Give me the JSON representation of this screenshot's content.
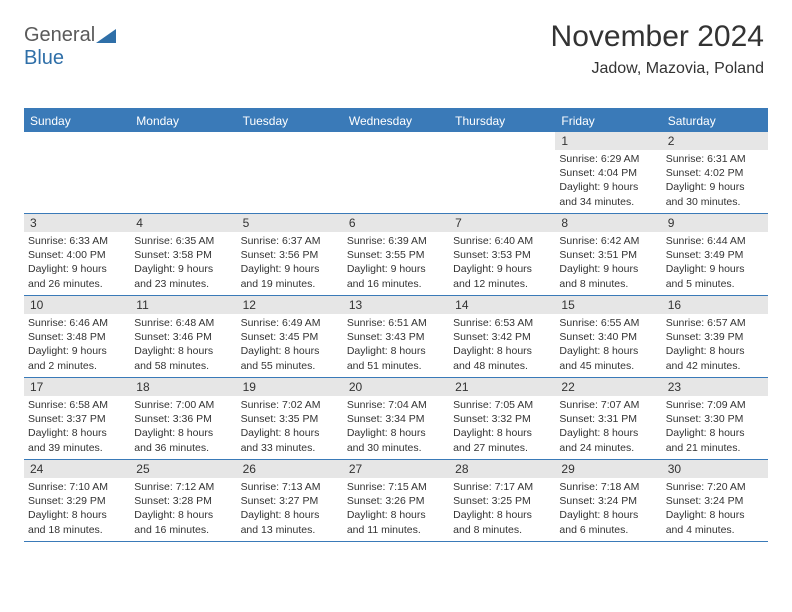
{
  "logo": {
    "gray": "General",
    "blue": "Blue"
  },
  "header": {
    "title": "November 2024",
    "subtitle": "Jadow, Mazovia, Poland"
  },
  "dayHeaders": [
    "Sunday",
    "Monday",
    "Tuesday",
    "Wednesday",
    "Thursday",
    "Friday",
    "Saturday"
  ],
  "colors": {
    "headerBg": "#3a7ab8",
    "headerText": "#ffffff",
    "dayBg": "#e6e6e6",
    "bodyText": "#333333",
    "logoGray": "#5a5a5a",
    "logoBlue": "#2f6fa8"
  },
  "days": [
    {
      "n": "",
      "sunrise": "",
      "sunset": "",
      "daylight": ""
    },
    {
      "n": "",
      "sunrise": "",
      "sunset": "",
      "daylight": ""
    },
    {
      "n": "",
      "sunrise": "",
      "sunset": "",
      "daylight": ""
    },
    {
      "n": "",
      "sunrise": "",
      "sunset": "",
      "daylight": ""
    },
    {
      "n": "",
      "sunrise": "",
      "sunset": "",
      "daylight": ""
    },
    {
      "n": "1",
      "sunrise": "Sunrise: 6:29 AM",
      "sunset": "Sunset: 4:04 PM",
      "daylight": "Daylight: 9 hours and 34 minutes."
    },
    {
      "n": "2",
      "sunrise": "Sunrise: 6:31 AM",
      "sunset": "Sunset: 4:02 PM",
      "daylight": "Daylight: 9 hours and 30 minutes."
    },
    {
      "n": "3",
      "sunrise": "Sunrise: 6:33 AM",
      "sunset": "Sunset: 4:00 PM",
      "daylight": "Daylight: 9 hours and 26 minutes."
    },
    {
      "n": "4",
      "sunrise": "Sunrise: 6:35 AM",
      "sunset": "Sunset: 3:58 PM",
      "daylight": "Daylight: 9 hours and 23 minutes."
    },
    {
      "n": "5",
      "sunrise": "Sunrise: 6:37 AM",
      "sunset": "Sunset: 3:56 PM",
      "daylight": "Daylight: 9 hours and 19 minutes."
    },
    {
      "n": "6",
      "sunrise": "Sunrise: 6:39 AM",
      "sunset": "Sunset: 3:55 PM",
      "daylight": "Daylight: 9 hours and 16 minutes."
    },
    {
      "n": "7",
      "sunrise": "Sunrise: 6:40 AM",
      "sunset": "Sunset: 3:53 PM",
      "daylight": "Daylight: 9 hours and 12 minutes."
    },
    {
      "n": "8",
      "sunrise": "Sunrise: 6:42 AM",
      "sunset": "Sunset: 3:51 PM",
      "daylight": "Daylight: 9 hours and 8 minutes."
    },
    {
      "n": "9",
      "sunrise": "Sunrise: 6:44 AM",
      "sunset": "Sunset: 3:49 PM",
      "daylight": "Daylight: 9 hours and 5 minutes."
    },
    {
      "n": "10",
      "sunrise": "Sunrise: 6:46 AM",
      "sunset": "Sunset: 3:48 PM",
      "daylight": "Daylight: 9 hours and 2 minutes."
    },
    {
      "n": "11",
      "sunrise": "Sunrise: 6:48 AM",
      "sunset": "Sunset: 3:46 PM",
      "daylight": "Daylight: 8 hours and 58 minutes."
    },
    {
      "n": "12",
      "sunrise": "Sunrise: 6:49 AM",
      "sunset": "Sunset: 3:45 PM",
      "daylight": "Daylight: 8 hours and 55 minutes."
    },
    {
      "n": "13",
      "sunrise": "Sunrise: 6:51 AM",
      "sunset": "Sunset: 3:43 PM",
      "daylight": "Daylight: 8 hours and 51 minutes."
    },
    {
      "n": "14",
      "sunrise": "Sunrise: 6:53 AM",
      "sunset": "Sunset: 3:42 PM",
      "daylight": "Daylight: 8 hours and 48 minutes."
    },
    {
      "n": "15",
      "sunrise": "Sunrise: 6:55 AM",
      "sunset": "Sunset: 3:40 PM",
      "daylight": "Daylight: 8 hours and 45 minutes."
    },
    {
      "n": "16",
      "sunrise": "Sunrise: 6:57 AM",
      "sunset": "Sunset: 3:39 PM",
      "daylight": "Daylight: 8 hours and 42 minutes."
    },
    {
      "n": "17",
      "sunrise": "Sunrise: 6:58 AM",
      "sunset": "Sunset: 3:37 PM",
      "daylight": "Daylight: 8 hours and 39 minutes."
    },
    {
      "n": "18",
      "sunrise": "Sunrise: 7:00 AM",
      "sunset": "Sunset: 3:36 PM",
      "daylight": "Daylight: 8 hours and 36 minutes."
    },
    {
      "n": "19",
      "sunrise": "Sunrise: 7:02 AM",
      "sunset": "Sunset: 3:35 PM",
      "daylight": "Daylight: 8 hours and 33 minutes."
    },
    {
      "n": "20",
      "sunrise": "Sunrise: 7:04 AM",
      "sunset": "Sunset: 3:34 PM",
      "daylight": "Daylight: 8 hours and 30 minutes."
    },
    {
      "n": "21",
      "sunrise": "Sunrise: 7:05 AM",
      "sunset": "Sunset: 3:32 PM",
      "daylight": "Daylight: 8 hours and 27 minutes."
    },
    {
      "n": "22",
      "sunrise": "Sunrise: 7:07 AM",
      "sunset": "Sunset: 3:31 PM",
      "daylight": "Daylight: 8 hours and 24 minutes."
    },
    {
      "n": "23",
      "sunrise": "Sunrise: 7:09 AM",
      "sunset": "Sunset: 3:30 PM",
      "daylight": "Daylight: 8 hours and 21 minutes."
    },
    {
      "n": "24",
      "sunrise": "Sunrise: 7:10 AM",
      "sunset": "Sunset: 3:29 PM",
      "daylight": "Daylight: 8 hours and 18 minutes."
    },
    {
      "n": "25",
      "sunrise": "Sunrise: 7:12 AM",
      "sunset": "Sunset: 3:28 PM",
      "daylight": "Daylight: 8 hours and 16 minutes."
    },
    {
      "n": "26",
      "sunrise": "Sunrise: 7:13 AM",
      "sunset": "Sunset: 3:27 PM",
      "daylight": "Daylight: 8 hours and 13 minutes."
    },
    {
      "n": "27",
      "sunrise": "Sunrise: 7:15 AM",
      "sunset": "Sunset: 3:26 PM",
      "daylight": "Daylight: 8 hours and 11 minutes."
    },
    {
      "n": "28",
      "sunrise": "Sunrise: 7:17 AM",
      "sunset": "Sunset: 3:25 PM",
      "daylight": "Daylight: 8 hours and 8 minutes."
    },
    {
      "n": "29",
      "sunrise": "Sunrise: 7:18 AM",
      "sunset": "Sunset: 3:24 PM",
      "daylight": "Daylight: 8 hours and 6 minutes."
    },
    {
      "n": "30",
      "sunrise": "Sunrise: 7:20 AM",
      "sunset": "Sunset: 3:24 PM",
      "daylight": "Daylight: 8 hours and 4 minutes."
    }
  ]
}
